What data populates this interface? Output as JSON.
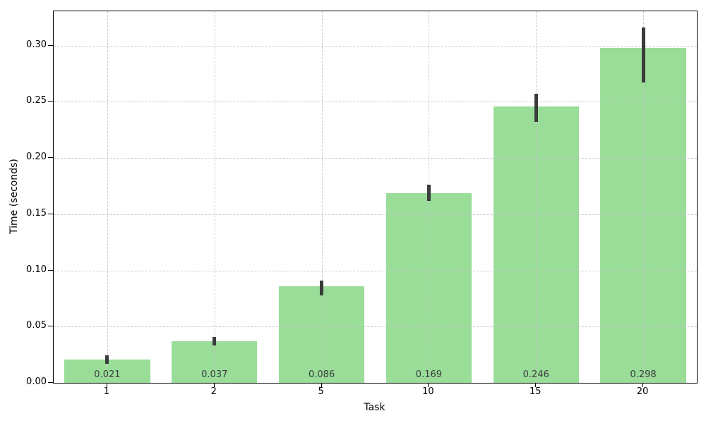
{
  "chart_data": {
    "type": "bar",
    "title": "",
    "xlabel": "Task",
    "ylabel": "Time (seconds)",
    "categories": [
      "1",
      "2",
      "5",
      "10",
      "15",
      "20"
    ],
    "values": [
      0.021,
      0.037,
      0.086,
      0.169,
      0.246,
      0.298
    ],
    "bar_labels": [
      "0.021",
      "0.037",
      "0.086",
      "0.169",
      "0.246",
      "0.298"
    ],
    "error_low": [
      0.017,
      0.033,
      0.078,
      0.162,
      0.232,
      0.267
    ],
    "error_high": [
      0.0245,
      0.041,
      0.091,
      0.176,
      0.257,
      0.316
    ],
    "yticks": [
      0.0,
      0.05,
      0.1,
      0.15,
      0.2,
      0.25,
      0.3
    ],
    "ytick_labels": [
      "0.00",
      "0.05",
      "0.10",
      "0.15",
      "0.20",
      "0.25",
      "0.30"
    ],
    "ylim": [
      0,
      0.3306
    ],
    "grid": "both-dashed",
    "legend_position": "none",
    "colors": {
      "bar": "#99dd99",
      "error": "#3b3b3b",
      "grid": "#c3c3c3",
      "axis": "#000000",
      "value_label": "#3c3c3c",
      "background": "#ffffff"
    }
  }
}
